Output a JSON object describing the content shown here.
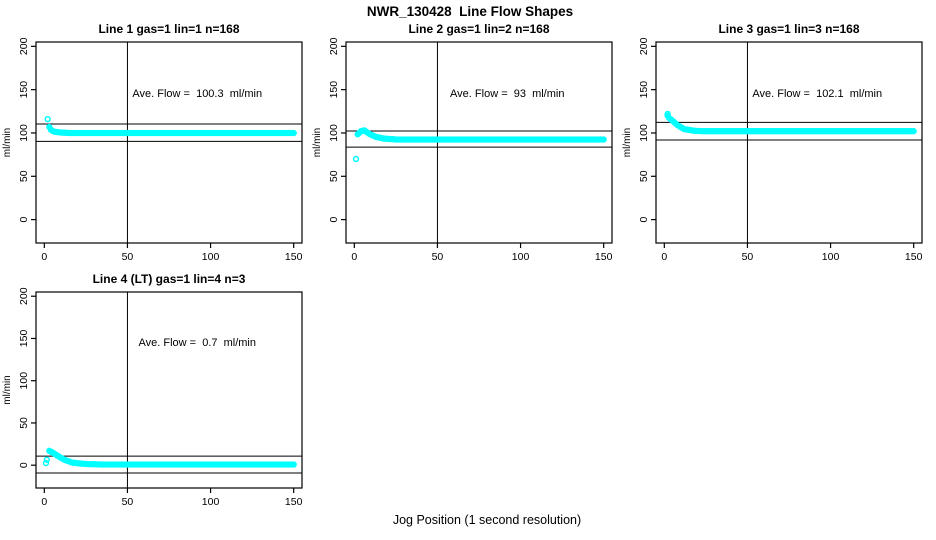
{
  "page_title": "NWR_130428  Line Flow Shapes",
  "xaxis_label": "Jog Position (1 second resolution)",
  "colors": {
    "points": "#00ffff",
    "axis": "#000000",
    "background": "#ffffff"
  },
  "chart_data": [
    {
      "type": "scatter",
      "title": "Line 1 gas=1 lin=1 n=168",
      "annotation": "Ave. Flow =  100.3  ml/min",
      "ave_flow_ml_min": 100.3,
      "n_points": 168,
      "ylabel": "ml/min",
      "x_ticks": [
        0,
        50,
        100,
        150
      ],
      "y_ticks": [
        0,
        50,
        100,
        150,
        200
      ],
      "xlim": [
        0,
        150
      ],
      "ylim": [
        0,
        200
      ],
      "vline_x": 50,
      "hlines": [
        110.3,
        90.3
      ],
      "lead_points": [
        [
          2,
          116
        ]
      ],
      "trace": [
        [
          3,
          107
        ],
        [
          4,
          103.5
        ],
        [
          6,
          101.5
        ],
        [
          10,
          100.5
        ],
        [
          15,
          100
        ],
        [
          150,
          100
        ]
      ]
    },
    {
      "type": "scatter",
      "title": "Line 2 gas=1 lin=2 n=168",
      "annotation": "Ave. Flow =  93  ml/min",
      "ave_flow_ml_min": 93,
      "n_points": 168,
      "ylabel": "ml/min",
      "x_ticks": [
        0,
        50,
        100,
        150
      ],
      "y_ticks": [
        0,
        50,
        100,
        150,
        200
      ],
      "xlim": [
        0,
        150
      ],
      "ylim": [
        0,
        200
      ],
      "vline_x": 50,
      "hlines": [
        102.3,
        83.7
      ],
      "lead_points": [
        [
          1,
          70
        ]
      ],
      "trace": [
        [
          2,
          98.5
        ],
        [
          4,
          102
        ],
        [
          6,
          103
        ],
        [
          9,
          99
        ],
        [
          13,
          95.5
        ],
        [
          18,
          93.5
        ],
        [
          25,
          92.5
        ],
        [
          150,
          92.5
        ]
      ]
    },
    {
      "type": "scatter",
      "title": "Line 3 gas=1 lin=3 n=168",
      "annotation": "Ave. Flow =  102.1  ml/min",
      "ave_flow_ml_min": 102.1,
      "n_points": 168,
      "ylabel": "ml/min",
      "x_ticks": [
        0,
        50,
        100,
        150
      ],
      "y_ticks": [
        0,
        50,
        100,
        150,
        200
      ],
      "xlim": [
        0,
        150
      ],
      "ylim": [
        0,
        200
      ],
      "vline_x": 50,
      "hlines": [
        112.3,
        91.9
      ],
      "lead_points": [
        [
          2,
          122
        ]
      ],
      "trace": [
        [
          2,
          120
        ],
        [
          3,
          117
        ],
        [
          5,
          114
        ],
        [
          8,
          109
        ],
        [
          12,
          104.5
        ],
        [
          18,
          102.5
        ],
        [
          25,
          102
        ],
        [
          150,
          102
        ]
      ]
    },
    {
      "type": "scatter",
      "title": "Line 4 (LT) gas=1 lin=4 n=3",
      "annotation": "Ave. Flow =  0.7  ml/min",
      "ave_flow_ml_min": 0.7,
      "n_points": 3,
      "ylabel": "ml/min",
      "x_ticks": [
        0,
        50,
        100,
        150
      ],
      "y_ticks": [
        0,
        50,
        100,
        150,
        200
      ],
      "xlim": [
        0,
        150
      ],
      "ylim": [
        0,
        200
      ],
      "vline_x": 50,
      "hlines": [
        10.7,
        -9.3
      ],
      "lead_points": [
        [
          1,
          2.5
        ],
        [
          1.5,
          6.5
        ]
      ],
      "trace": [
        [
          3,
          17
        ],
        [
          5,
          15
        ],
        [
          8,
          11
        ],
        [
          12,
          6.5
        ],
        [
          17,
          3
        ],
        [
          24,
          1.5
        ],
        [
          35,
          0.8
        ],
        [
          150,
          0.8
        ]
      ]
    }
  ]
}
